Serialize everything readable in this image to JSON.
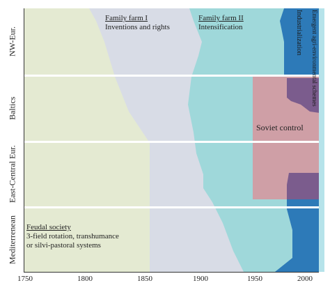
{
  "regions": [
    {
      "label": "NW-Eur."
    },
    {
      "label": "Baltics"
    },
    {
      "label": "East-Central Eur."
    },
    {
      "label": "Mediterrenean"
    }
  ],
  "phases": {
    "feudal": {
      "title": "Feudal society",
      "line1": "3-field rotation, transhumance",
      "line2": "or silvi-pastoral systems"
    },
    "family_farm_1": {
      "title": "Family farm I",
      "subtitle": "Inventions and rights"
    },
    "family_farm_2": {
      "title": "Family farm II",
      "subtitle": "Intensification"
    },
    "industrialization": "Industrialization",
    "agri_env": "Emergent agri-environmental schemes",
    "soviet": "Soviet control"
  },
  "axis": {
    "ticks": [
      "1750",
      "1800",
      "1850",
      "1900",
      "1950",
      "2000"
    ]
  },
  "colors": {
    "feudal": "#e4ead2",
    "family_farm_1": "#d8dce6",
    "family_farm_2": "#9fd8da",
    "industrialization": "#2d7ab8",
    "soviet": "#cf9fa6",
    "soviet_over_ind": "#7b5c8d"
  }
}
